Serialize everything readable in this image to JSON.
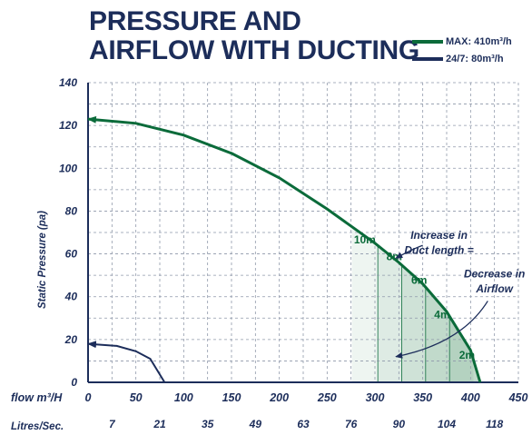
{
  "title": {
    "line1": "PRESSURE AND",
    "line2": "AIRFLOW WITH DUCTING"
  },
  "legend": [
    {
      "label": "MAX: 410m³/h",
      "color": "#0b6b3a"
    },
    {
      "label": "24/7: 80m³/h",
      "color": "#1c2d5a"
    }
  ],
  "colors": {
    "axis_text": "#1c2d5a",
    "grid": "#8f98aa",
    "max_curve": "#0b6b3a",
    "low_curve": "#1c2d5a",
    "shade": "#0b6b3a"
  },
  "chart_data": {
    "type": "line",
    "title": "PRESSURE AND AIRFLOW WITH DUCTING",
    "ylabel": "Static Pressure (pa)",
    "xlabel": "flow m³/H",
    "secondary_xlabel": "Litres/Sec.",
    "xlim": [
      0,
      450
    ],
    "ylim": [
      0,
      140
    ],
    "x_ticks": [
      "0",
      "50",
      "100",
      "150",
      "200",
      "250",
      "300",
      "350",
      "400",
      "450"
    ],
    "y_ticks": [
      "0",
      "20",
      "40",
      "60",
      "80",
      "100",
      "120",
      "140"
    ],
    "secondary_x_ticks": [
      {
        "label": "7",
        "x": 25
      },
      {
        "label": "21",
        "x": 75
      },
      {
        "label": "35",
        "x": 125
      },
      {
        "label": "49",
        "x": 175
      },
      {
        "label": "63",
        "x": 225
      },
      {
        "label": "76",
        "x": 275
      },
      {
        "label": "90",
        "x": 325
      },
      {
        "label": "104",
        "x": 375
      },
      {
        "label": "118",
        "x": 425
      }
    ],
    "grid": true,
    "legend_position": "top-right",
    "series": [
      {
        "name": "MAX: 410m³/h",
        "points": [
          [
            0,
            123
          ],
          [
            50,
            121
          ],
          [
            100,
            115.5
          ],
          [
            150,
            107
          ],
          [
            200,
            95.5
          ],
          [
            250,
            81
          ],
          [
            300,
            65
          ],
          [
            325,
            56
          ],
          [
            350,
            46
          ],
          [
            375,
            33
          ],
          [
            400,
            15
          ],
          [
            410,
            0
          ]
        ]
      },
      {
        "name": "24/7: 80m³/h",
        "points": [
          [
            0,
            18
          ],
          [
            30,
            17
          ],
          [
            50,
            14.5
          ],
          [
            65,
            11
          ],
          [
            80,
            0
          ]
        ]
      }
    ],
    "shaded_regions": [
      {
        "label": "10m",
        "x_from": 276,
        "x_to": 403,
        "value_x": 278,
        "value_y": 65
      },
      {
        "label": "8m",
        "x_from": 303,
        "x_to": 407,
        "value_x": 312,
        "value_y": 57
      },
      {
        "label": "6m",
        "x_from": 328,
        "x_to": 409,
        "value_x": 338,
        "value_y": 46
      },
      {
        "label": "4m",
        "x_from": 353,
        "x_to": 410,
        "value_x": 362,
        "value_y": 30
      },
      {
        "label": "2m",
        "x_from": 378,
        "x_to": 410,
        "value_x": 388,
        "value_y": 11
      }
    ],
    "annotations": [
      {
        "text": "Increase in",
        "x": 367,
        "y": 67
      },
      {
        "text": "Duct length =",
        "x": 367,
        "y": 60
      },
      {
        "text": "Decrease in",
        "x": 425,
        "y": 49
      },
      {
        "text": "Airflow",
        "x": 425,
        "y": 42
      }
    ]
  }
}
